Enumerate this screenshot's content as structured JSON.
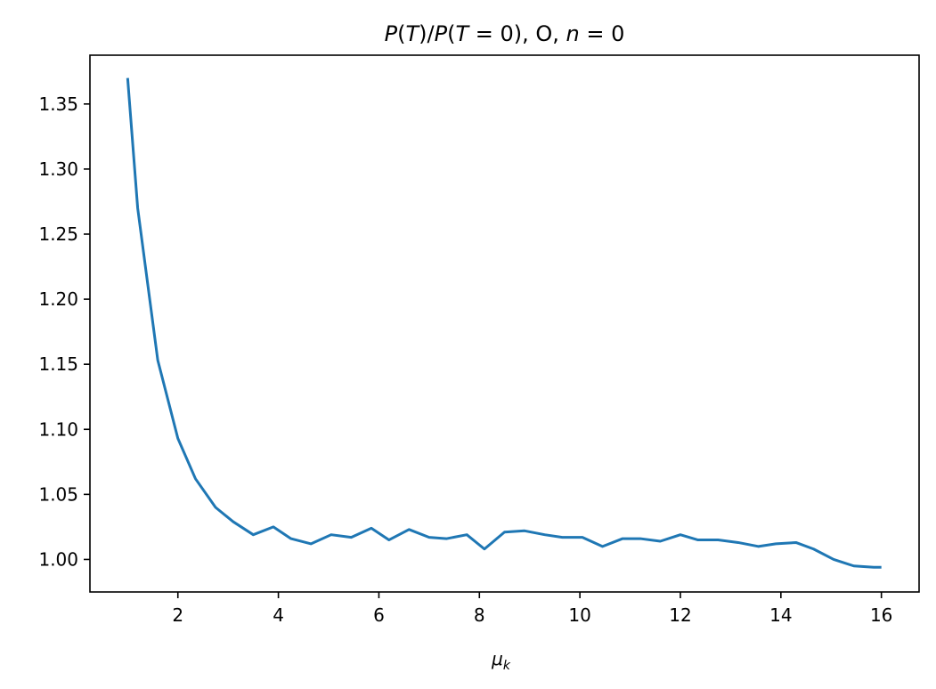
{
  "chart_data": {
    "type": "line",
    "title": "P(T)/P(T=0), O, n=0",
    "title_parts": [
      {
        "text": "P",
        "italic": true
      },
      {
        "text": "(",
        "italic": false
      },
      {
        "text": "T",
        "italic": true
      },
      {
        "text": ")/",
        "italic": false
      },
      {
        "text": "P",
        "italic": true
      },
      {
        "text": "(",
        "italic": false
      },
      {
        "text": "T",
        "italic": true
      },
      {
        "text": " = 0), O, ",
        "italic": false
      },
      {
        "text": "n",
        "italic": true
      },
      {
        "text": " = 0",
        "italic": false
      }
    ],
    "xlabel": "μ",
    "xlabel_sub": "k",
    "ylabel": "",
    "xlim": [
      0.25,
      16.75
    ],
    "ylim": [
      0.975,
      1.3875
    ],
    "xticks": [
      2,
      4,
      6,
      8,
      10,
      12,
      14,
      16
    ],
    "xtick_labels": [
      "2",
      "4",
      "6",
      "8",
      "10",
      "12",
      "14",
      "16"
    ],
    "yticks": [
      1.0,
      1.05,
      1.1,
      1.15,
      1.2,
      1.25,
      1.3,
      1.35
    ],
    "ytick_labels": [
      "1.00",
      "1.05",
      "1.10",
      "1.15",
      "1.20",
      "1.25",
      "1.30",
      "1.35"
    ],
    "grid": false,
    "series": [
      {
        "color": "#1f77b4",
        "x": [
          1.0,
          1.2,
          1.6,
          2.0,
          2.35,
          2.75,
          3.1,
          3.5,
          3.9,
          4.25,
          4.65,
          5.05,
          5.45,
          5.85,
          6.2,
          6.6,
          7.0,
          7.35,
          7.75,
          8.1,
          8.5,
          8.9,
          9.3,
          9.65,
          10.05,
          10.45,
          10.85,
          11.2,
          11.6,
          12.0,
          12.35,
          12.75,
          13.15,
          13.55,
          13.9,
          14.3,
          14.65,
          15.05,
          15.45,
          15.85,
          16.0
        ],
        "y": [
          1.37,
          1.27,
          1.153,
          1.093,
          1.062,
          1.04,
          1.029,
          1.019,
          1.025,
          1.016,
          1.012,
          1.019,
          1.017,
          1.024,
          1.015,
          1.023,
          1.017,
          1.016,
          1.019,
          1.008,
          1.021,
          1.022,
          1.019,
          1.017,
          1.017,
          1.01,
          1.016,
          1.016,
          1.014,
          1.019,
          1.015,
          1.015,
          1.013,
          1.01,
          1.012,
          1.013,
          1.008,
          1.0,
          0.995,
          0.994,
          0.994
        ]
      }
    ]
  }
}
